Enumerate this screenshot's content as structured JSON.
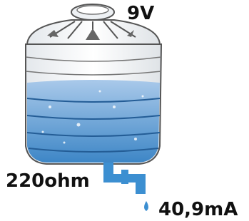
{
  "labels": {
    "voltage": "9V",
    "resistance": "220ohm",
    "current": "40,9mA"
  }
}
